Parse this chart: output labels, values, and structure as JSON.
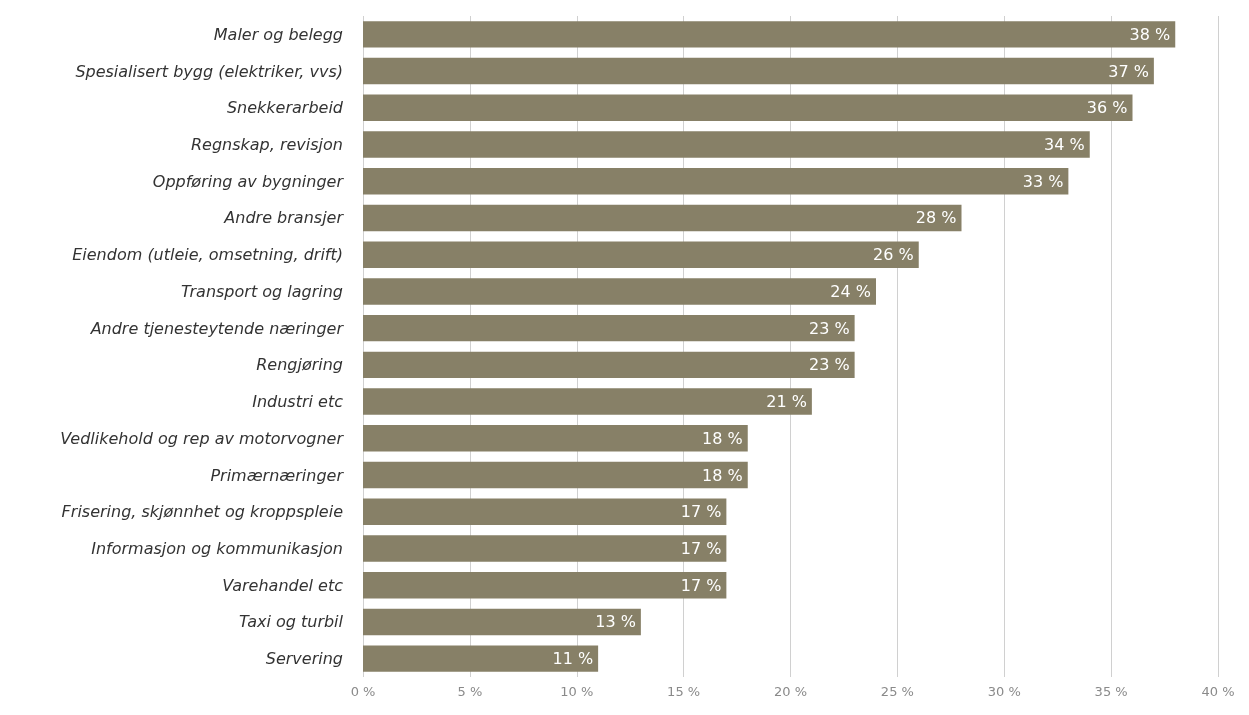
{
  "chart_data": {
    "type": "bar",
    "orientation": "horizontal",
    "categories": [
      "Maler og belegg",
      "Spesialisert bygg (elektriker, vvs)",
      "Snekkerarbeid",
      "Regnskap, revisjon",
      "Oppføring av bygninger",
      "Andre bransjer",
      "Eiendom (utleie, omsetning, drift)",
      "Transport og lagring",
      "Andre tjenesteytende næringer",
      "Rengjøring",
      "Industri etc",
      "Vedlikehold og rep av motorvogner",
      "Primærnæringer",
      "Frisering, skjønnhet og kroppspleie",
      "Informasjon og kommunikasjon",
      "Varehandel etc",
      "Taxi og turbil",
      "Servering"
    ],
    "values": [
      38,
      37,
      36,
      34,
      33,
      28,
      26,
      24,
      23,
      23,
      21,
      18,
      18,
      17,
      17,
      17,
      13,
      11
    ],
    "value_labels": [
      "38 %",
      "37 %",
      "36 %",
      "34 %",
      "33 %",
      "28 %",
      "26 %",
      "24 %",
      "23 %",
      "23 %",
      "21 %",
      "18 %",
      "18 %",
      "17 %",
      "17 %",
      "17 %",
      "13 %",
      "11 %"
    ],
    "color": "#878067",
    "xlim": [
      0,
      40
    ],
    "xticks": [
      {
        "value": 0,
        "label": "0 %"
      },
      {
        "value": 5,
        "label": "5 %"
      },
      {
        "value": 10,
        "label": "10 %"
      },
      {
        "value": 15,
        "label": "15 %"
      },
      {
        "value": 20,
        "label": "20 %"
      },
      {
        "value": 25,
        "label": "25 %"
      },
      {
        "value": 30,
        "label": "30 %"
      },
      {
        "value": 35,
        "label": "35 %"
      },
      {
        "value": 40,
        "label": "40 %"
      }
    ],
    "grid": "x"
  }
}
